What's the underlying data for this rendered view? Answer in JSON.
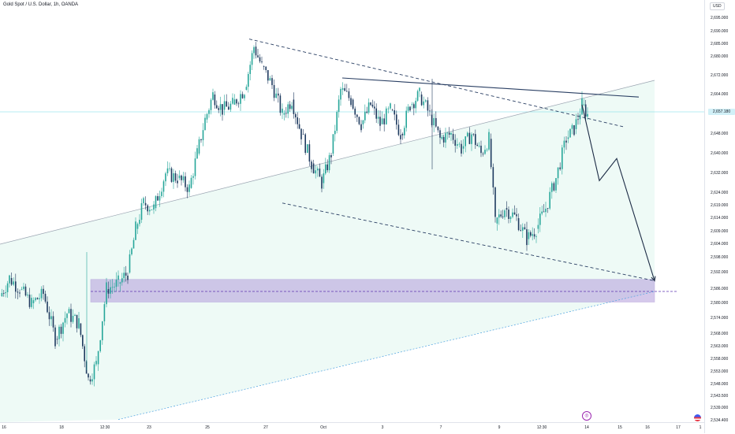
{
  "header": {
    "title": "Gold Spot / U.S. Dollar, 1h, OANDA",
    "currency": "USD",
    "last_price": "2,657.180"
  },
  "colors": {
    "up_candle": "#26a69a",
    "down_candle": "#1e3a5f",
    "trendline": "#2a3f63",
    "zone_fill": "#b39ddb",
    "channel_fill": "#e0f5ee",
    "last_price_line": "#4dd0e1"
  },
  "price_axis": {
    "labels": [
      "2,695.000",
      "2,690.000",
      "2,685.000",
      "2,680.000",
      "2,672.000",
      "2,664.000",
      "2,648.000",
      "2,640.000",
      "2,632.000",
      "2,624.000",
      "2,619.000",
      "2,614.000",
      "2,609.000",
      "2,604.000",
      "2,598.000",
      "2,592.000",
      "2,586.000",
      "2,580.000",
      "2,574.000",
      "2,568.000",
      "2,563.000",
      "2,558.000",
      "2,553.000",
      "2,548.000",
      "2,543.500",
      "2,539.000",
      "2,534.400"
    ]
  },
  "time_axis": {
    "labels": [
      "16",
      "18",
      "12:30",
      "23",
      "25",
      "27",
      "Oct",
      "3",
      "7",
      "9",
      "12:30",
      "14",
      "15",
      "16",
      "17",
      "1"
    ]
  },
  "chart_data": {
    "type": "candlestick",
    "title": "Gold Spot / U.S. Dollar, 1h, OANDA",
    "xlabel": "",
    "ylabel": "",
    "ylim": [
      2534.4,
      2699.0
    ],
    "last_price": 2657.18,
    "x_ticks": [
      "16",
      "18",
      "12:30",
      "23",
      "25",
      "27",
      "Oct",
      "3",
      "7",
      "9",
      "12:30",
      "14",
      "15",
      "16",
      "17",
      "1"
    ],
    "price_path": [
      [
        0,
        2583
      ],
      [
        12,
        2590
      ],
      [
        25,
        2586
      ],
      [
        40,
        2580
      ],
      [
        55,
        2584
      ],
      [
        70,
        2566
      ],
      [
        85,
        2576
      ],
      [
        100,
        2572
      ],
      [
        112,
        2550
      ],
      [
        122,
        2556
      ],
      [
        135,
        2586
      ],
      [
        150,
        2588
      ],
      [
        162,
        2592
      ],
      [
        172,
        2610
      ],
      [
        182,
        2620
      ],
      [
        195,
        2618
      ],
      [
        210,
        2632
      ],
      [
        225,
        2630
      ],
      [
        240,
        2626
      ],
      [
        250,
        2640
      ],
      [
        260,
        2654
      ],
      [
        270,
        2664
      ],
      [
        282,
        2658
      ],
      [
        295,
        2660
      ],
      [
        310,
        2666
      ],
      [
        322,
        2684
      ],
      [
        332,
        2676
      ],
      [
        345,
        2668
      ],
      [
        358,
        2656
      ],
      [
        370,
        2662
      ],
      [
        382,
        2648
      ],
      [
        395,
        2636
      ],
      [
        408,
        2628
      ],
      [
        420,
        2640
      ],
      [
        432,
        2666
      ],
      [
        445,
        2662
      ],
      [
        458,
        2652
      ],
      [
        470,
        2660
      ],
      [
        482,
        2652
      ],
      [
        495,
        2658
      ],
      [
        508,
        2648
      ],
      [
        520,
        2660
      ],
      [
        532,
        2664
      ],
      [
        545,
        2656
      ],
      [
        558,
        2646
      ],
      [
        572,
        2648
      ],
      [
        585,
        2642
      ],
      [
        598,
        2648
      ],
      [
        610,
        2640
      ],
      [
        620,
        2646
      ],
      [
        628,
        2612
      ],
      [
        640,
        2618
      ],
      [
        655,
        2614
      ],
      [
        668,
        2606
      ],
      [
        680,
        2610
      ],
      [
        692,
        2618
      ],
      [
        705,
        2630
      ],
      [
        718,
        2646
      ],
      [
        728,
        2650
      ],
      [
        738,
        2660
      ],
      [
        745,
        2656
      ]
    ],
    "annotations": {
      "resistance_line": {
        "from": [
          434,
          2671
        ],
        "to": [
          810,
          2663
        ]
      },
      "upper_dashed": {
        "from": [
          316,
          2687
        ],
        "to": [
          790,
          2651
        ]
      },
      "lower_dashed": {
        "from": [
          358,
          2620
        ],
        "to": [
          830,
          2589
        ]
      },
      "rising_line": {
        "from": [
          0,
          2604
        ],
        "to": [
          830,
          2670
        ]
      },
      "rising_dotted": {
        "from": [
          150,
          2534.8
        ],
        "to": [
          830,
          2585
        ]
      },
      "support_zone": {
        "x0": 115,
        "x1": 830,
        "top": 2589.5,
        "bottom": 2580.5,
        "mid": 2585
      },
      "projection": [
        [
          738,
          2660
        ],
        [
          760,
          2629
        ],
        [
          782,
          2638
        ],
        [
          830,
          2589
        ]
      ]
    }
  }
}
